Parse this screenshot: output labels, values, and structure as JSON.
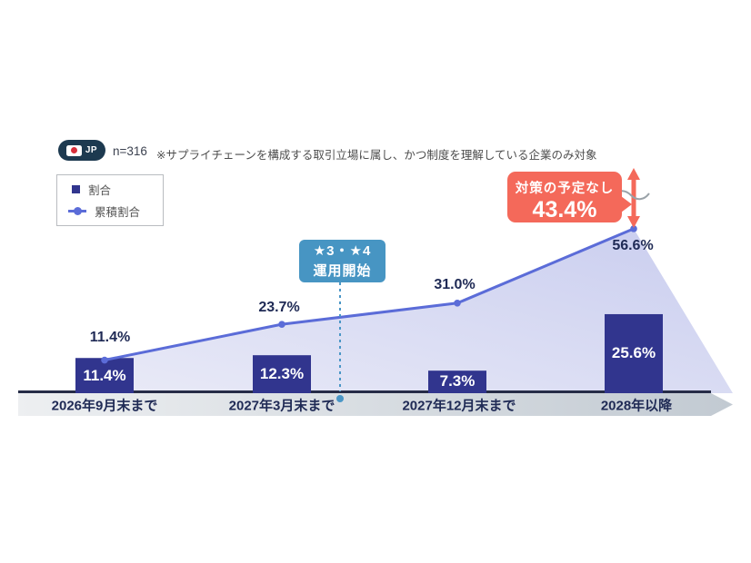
{
  "header": {
    "country_badge": {
      "label": "JP",
      "flag": "japan-flag"
    },
    "sample_size": "n=316",
    "note": "※サプライチェーンを構成する取引立場に属し、かつ制度を理解している企業のみ対象"
  },
  "legend": {
    "items": [
      {
        "label": "割合",
        "marker": "square"
      },
      {
        "label": "累積割合",
        "marker": "line-dot"
      }
    ]
  },
  "annotations": {
    "no_plan_callout": {
      "line1": "対策の予定なし",
      "value": "43.4%"
    },
    "milestone_box": {
      "line1": "★3・★4",
      "line2": "運用開始"
    }
  },
  "chart_data": {
    "type": "bar",
    "categories": [
      "2026年9月末まで",
      "2027年3月末まで",
      "2027年12月末まで",
      "2028年以降"
    ],
    "series": [
      {
        "name": "割合",
        "type": "bar",
        "values": [
          11.4,
          12.3,
          7.3,
          25.6
        ],
        "labels": [
          "11.4%",
          "12.3%",
          "7.3%",
          "25.6%"
        ]
      },
      {
        "name": "累積割合",
        "type": "line",
        "values": [
          11.4,
          23.7,
          31.0,
          56.6
        ],
        "labels": [
          "11.4%",
          "23.7%",
          "31.0%",
          "56.6%"
        ]
      }
    ],
    "remaining_gap_percent": 43.4,
    "axis": {
      "style": "right-arrow-band",
      "ylim": [
        0,
        60
      ],
      "gridlines": false,
      "legend_position": "top-left"
    }
  },
  "colors": {
    "bar": "#31358e",
    "line": "#5b6cd8",
    "area_light": "#e9eaf7",
    "area_deep": "#c9cdef",
    "axis_line": "#262c47",
    "band_light": "#edeff1",
    "band_dark": "#c2cad2",
    "callout_red": "#f4695a",
    "milestone_blue": "#4795c3",
    "dashed_blue": "#4a96c6",
    "label_navy": "#1f2a55",
    "break_gray": "#9aa2a8"
  }
}
